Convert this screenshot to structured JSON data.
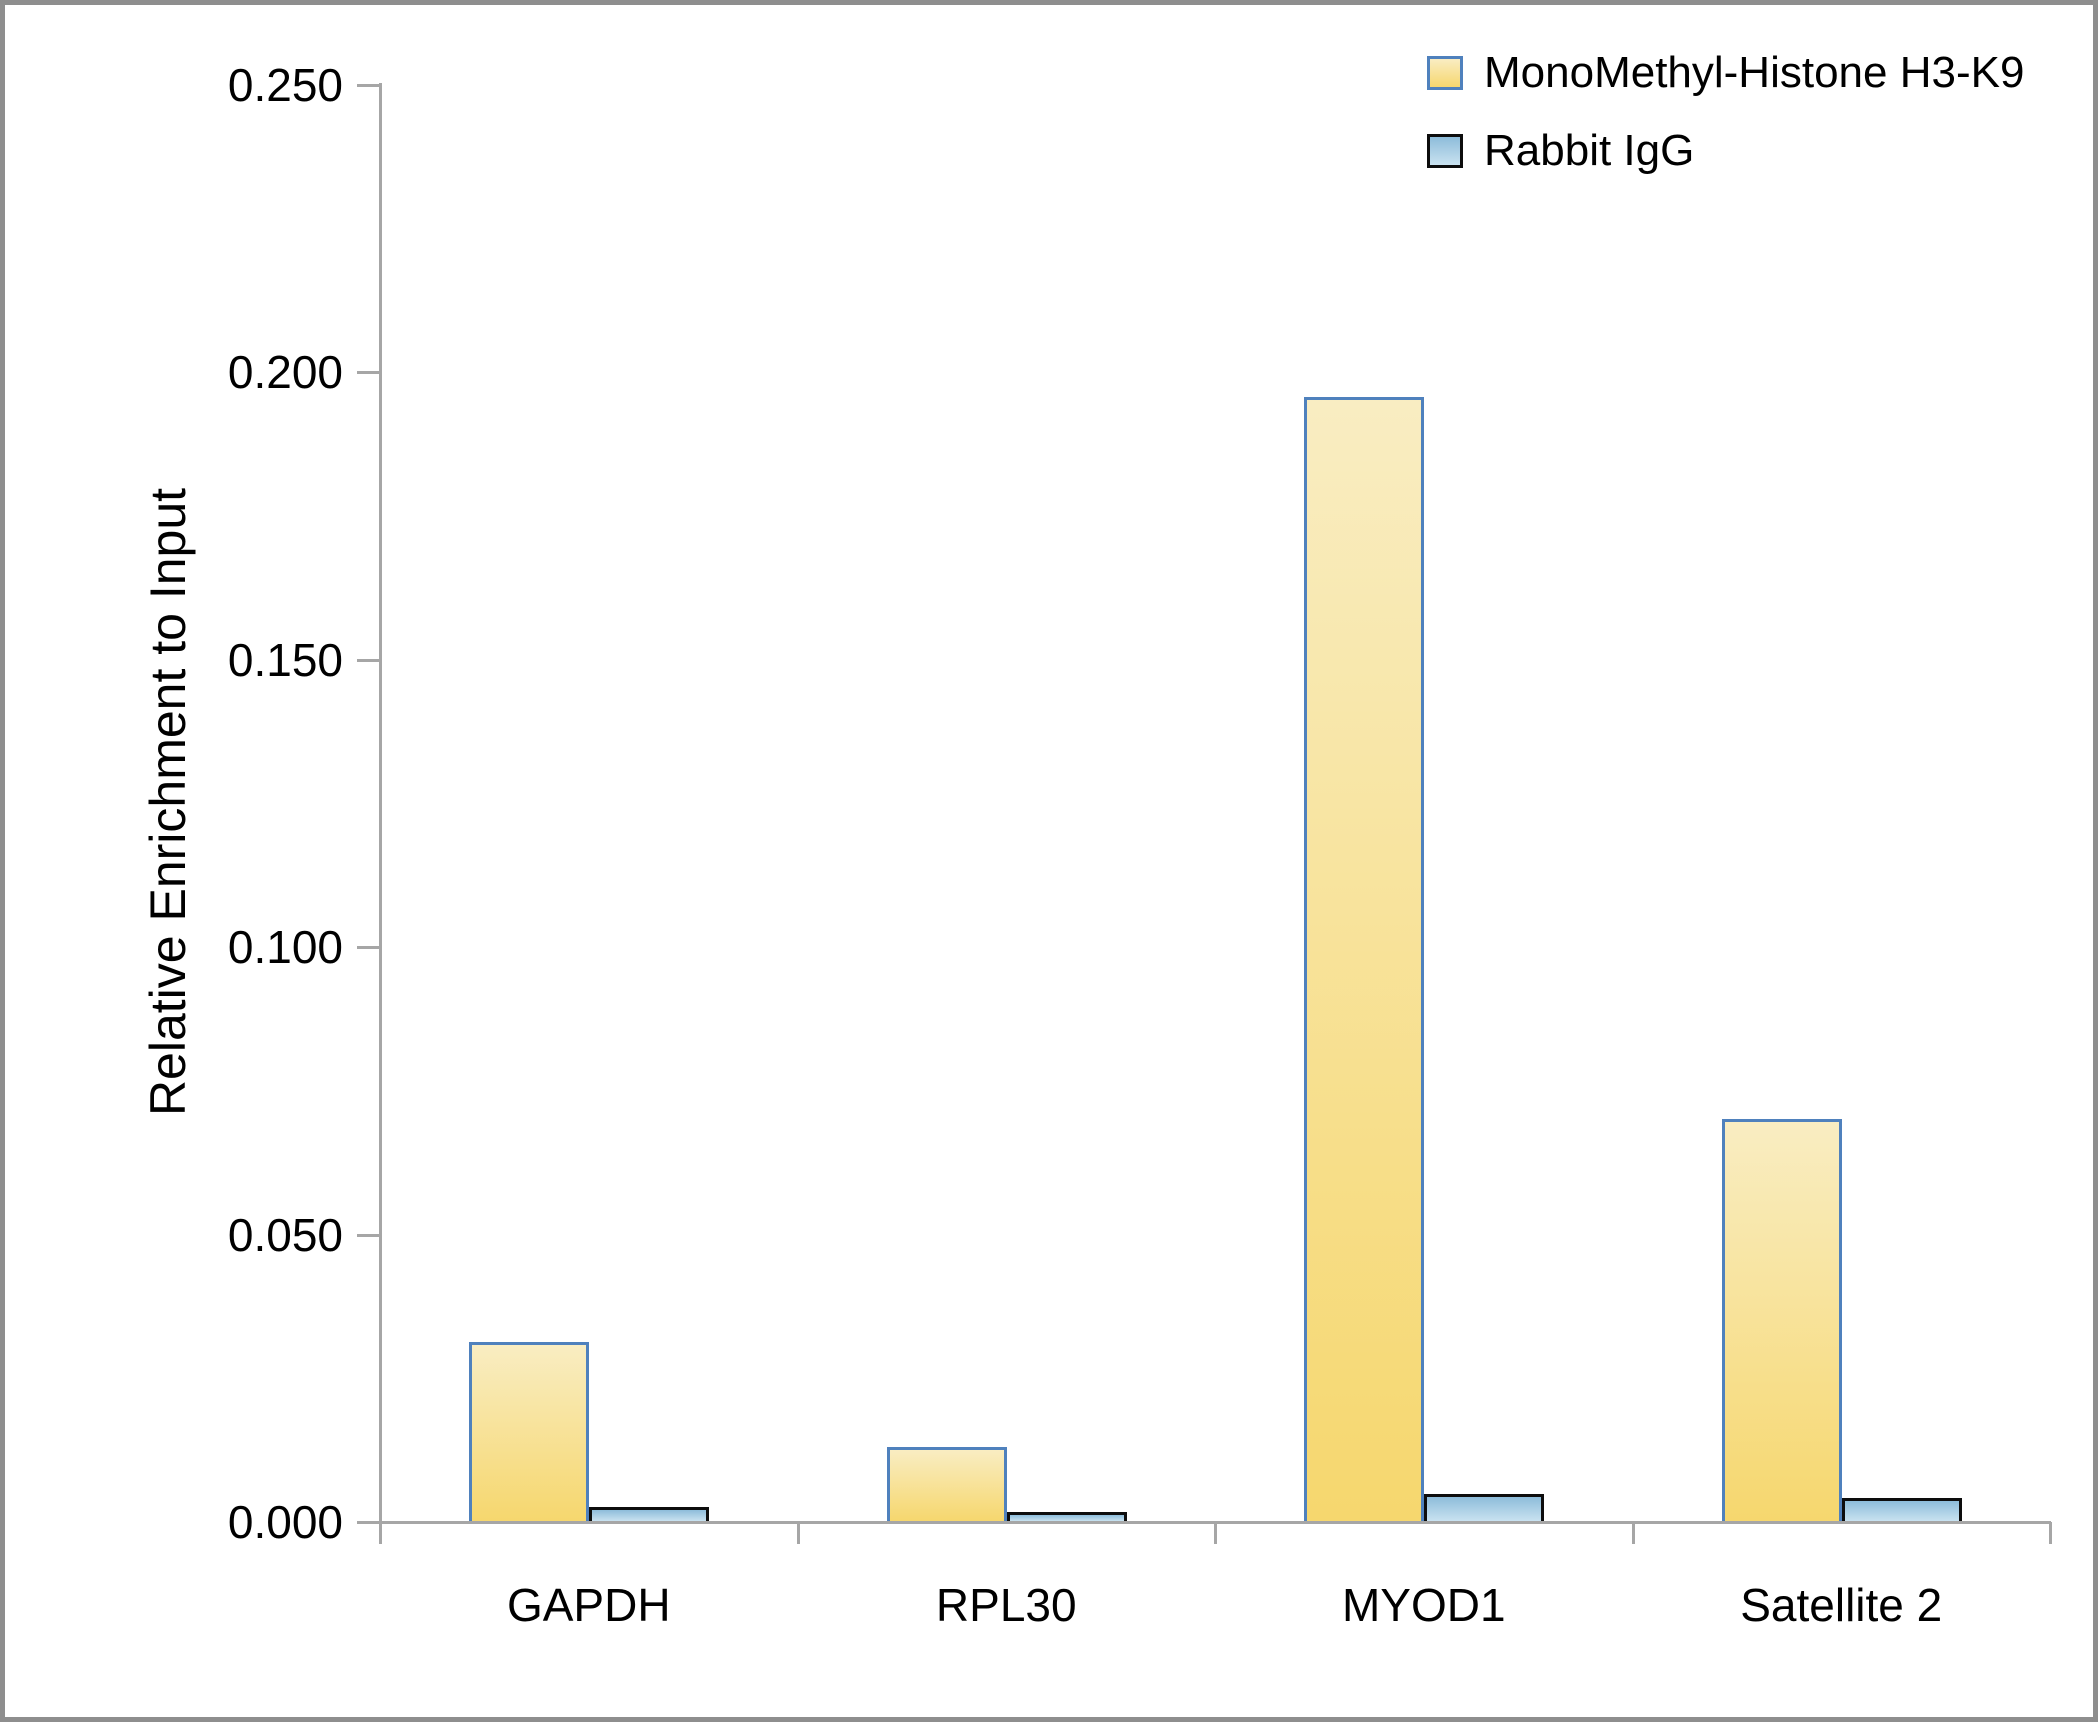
{
  "figure": {
    "frame_border_color": "#8e8e8e",
    "background_color": "#ffffff",
    "axis_line_color": "#a6a6a6",
    "text_color": "#000000"
  },
  "chart_data": {
    "type": "bar",
    "title": "",
    "xlabel": "",
    "ylabel": "Relative Enrichment to Input",
    "categories": [
      "GAPDH",
      "RPL30",
      "MYOD1",
      "Satellite 2"
    ],
    "series": [
      {
        "name": "MonoMethyl-Histone H3-K9",
        "values": [
          0.0313,
          0.013,
          0.1957,
          0.0701
        ],
        "fill_top": "#f9edc2",
        "fill_bottom": "#f6d76e",
        "border_color": "#4f81bd"
      },
      {
        "name": "Rabbit IgG",
        "values": [
          0.0026,
          0.0017,
          0.0049,
          0.0042
        ],
        "fill_top": "#8dbcda",
        "fill_bottom": "#c9e2f0",
        "border_color": "#0d0d0d"
      }
    ],
    "ylim": [
      0,
      0.25
    ],
    "ytick_step": 0.05,
    "ytick_labels": [
      "0.000",
      "0.050",
      "0.100",
      "0.150",
      "0.200",
      "0.250"
    ],
    "grid": false,
    "legend_position": "top-right"
  }
}
